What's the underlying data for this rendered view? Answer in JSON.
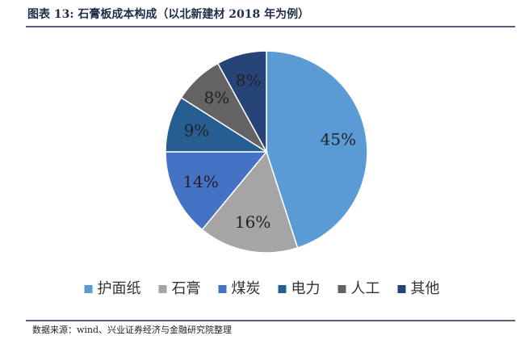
{
  "chart_data": {
    "type": "pie",
    "title": "图表 13:  石膏板成本构成（以北新建材 2018 年为例）",
    "categories": [
      "护面纸",
      "石膏",
      "煤炭",
      "电力",
      "人工",
      "其他"
    ],
    "values": [
      45,
      16,
      14,
      9,
      8,
      8
    ],
    "value_labels": [
      "45%",
      "16%",
      "14%",
      "9%",
      "8%",
      "8%"
    ],
    "colors": [
      "#5b9bd5",
      "#a5a5a5",
      "#4472c4",
      "#255e91",
      "#636363",
      "#264478"
    ],
    "legend": "bottom",
    "source": "数据来源：wind、兴业证券经济与金融研究院整理"
  }
}
